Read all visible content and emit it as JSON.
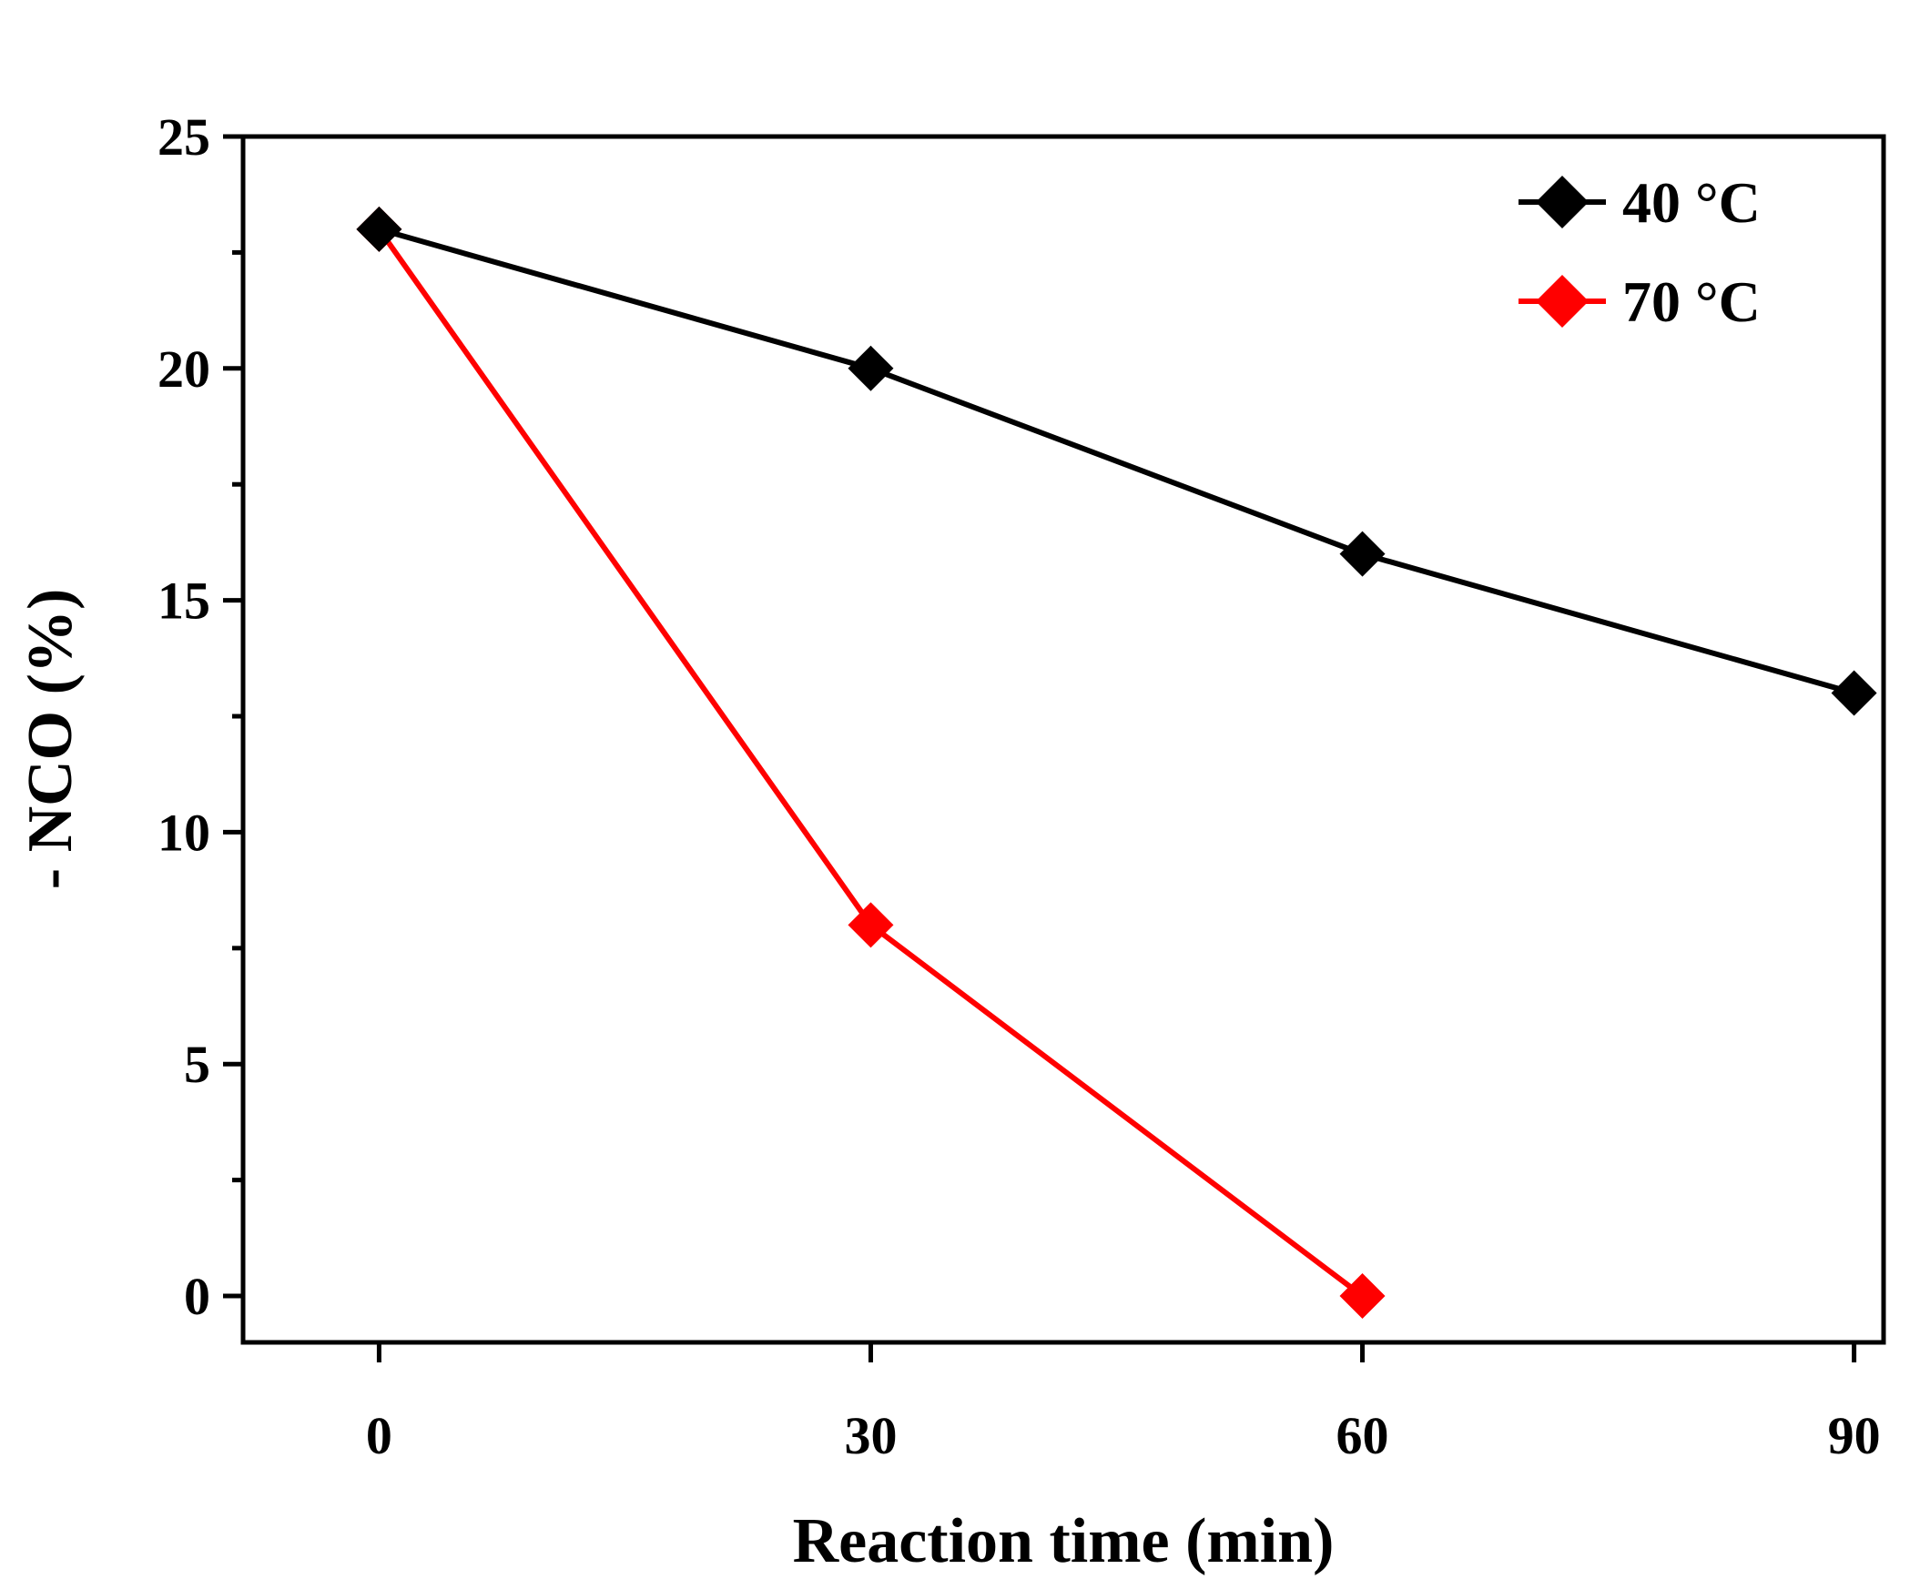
{
  "chart_data": {
    "type": "line",
    "title": "",
    "xlabel": "Reaction time (min)",
    "ylabel": "- NCO (%)",
    "xlim": [
      -8.3,
      91.8
    ],
    "ylim": [
      -1,
      25
    ],
    "xticks": [
      0,
      30,
      60,
      90
    ],
    "yticks": [
      0,
      5,
      10,
      15,
      20,
      25
    ],
    "yminor_ticks": [
      2.5,
      7.5,
      12.5,
      17.5,
      22.5
    ],
    "grid": false,
    "legend_position": "top-right",
    "marker": "diamond",
    "series": [
      {
        "name": "40 °C",
        "color": "#000000",
        "x": [
          0,
          30,
          60,
          90
        ],
        "y": [
          23,
          20,
          16,
          13
        ]
      },
      {
        "name": "70 °C",
        "color": "#ff0000",
        "x": [
          0,
          30,
          60
        ],
        "y": [
          23,
          8,
          0
        ]
      }
    ]
  }
}
